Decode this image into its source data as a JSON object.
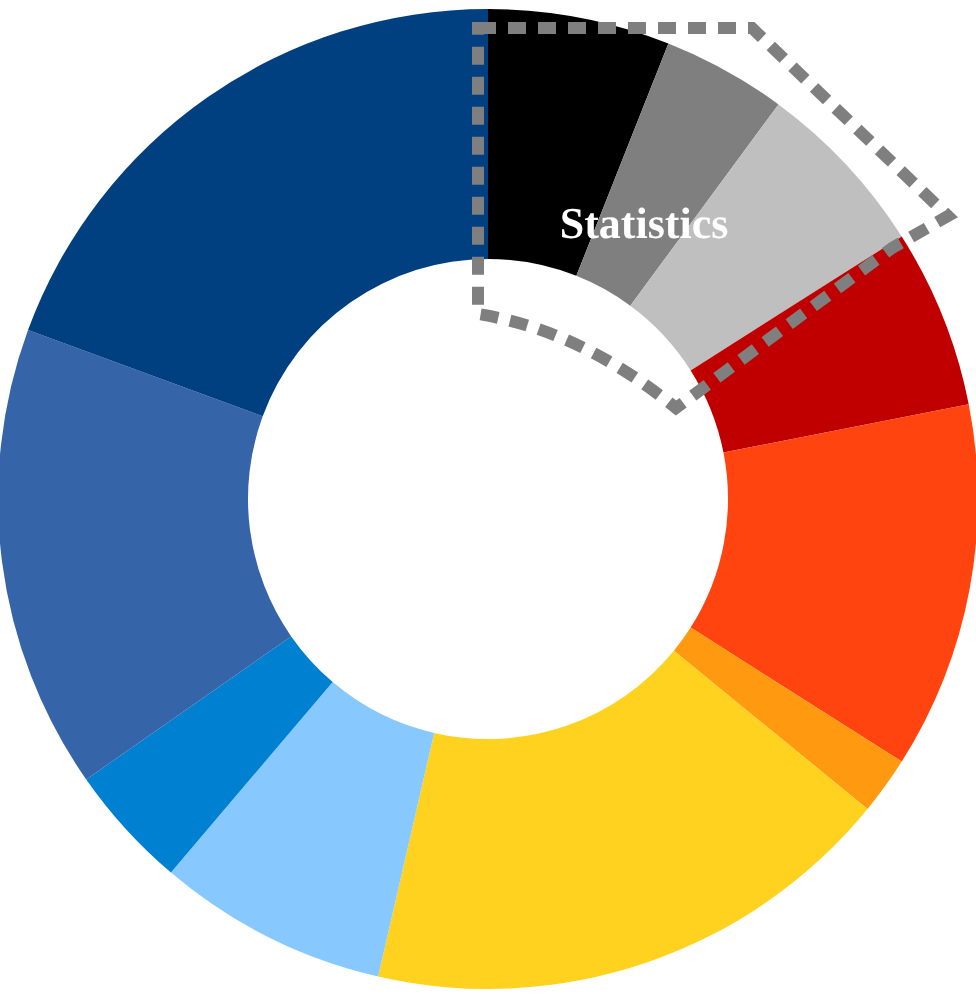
{
  "chart_data": {
    "type": "donut",
    "categories": [
      null,
      null,
      null,
      null,
      null,
      null,
      null,
      null,
      null,
      null,
      null
    ],
    "values": [
      6.0,
      4.1,
      5.9,
      5.9,
      12.1,
      1.9,
      17.7,
      7.6,
      4.1,
      15.3,
      19.4
    ],
    "colors": [
      "#000000",
      "#7f7f7f",
      "#bfbfbf",
      "#c00000",
      "#ff4410",
      "#ff9a10",
      "#ffd21f",
      "#87c8ff",
      "#0080d0",
      "#3565a8",
      "#003f80"
    ],
    "annotations": [
      "Statistics"
    ]
  }
}
